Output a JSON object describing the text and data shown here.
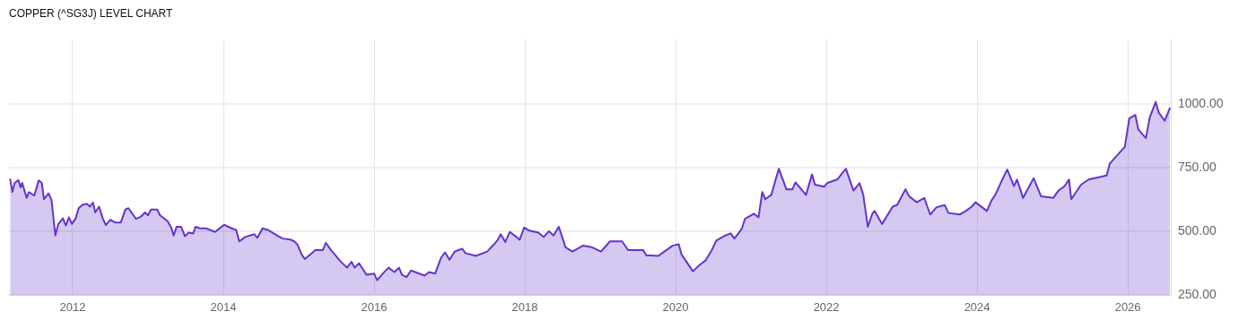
{
  "chart_data": {
    "type": "area",
    "title": "COPPER (^SG3J) LEVEL CHART",
    "x": [
      2011.17,
      2011.2,
      2011.23,
      2011.28,
      2011.31,
      2011.33,
      2011.39,
      2011.42,
      2011.49,
      2011.55,
      2011.59,
      2011.62,
      2011.68,
      2011.72,
      2011.77,
      2011.81,
      2011.87,
      2011.91,
      2011.95,
      2011.99,
      2012.04,
      2012.08,
      2012.13,
      2012.19,
      2012.23,
      2012.27,
      2012.3,
      2012.35,
      2012.4,
      2012.44,
      2012.5,
      2012.56,
      2012.64,
      2012.7,
      2012.74,
      2012.84,
      2012.9,
      2012.96,
      2013.0,
      2013.04,
      2013.12,
      2013.16,
      2013.26,
      2013.31,
      2013.34,
      2013.38,
      2013.44,
      2013.49,
      2013.54,
      2013.6,
      2013.63,
      2013.69,
      2013.77,
      2013.89,
      2014.01,
      2014.11,
      2014.17,
      2014.21,
      2014.29,
      2014.41,
      2014.45,
      2014.52,
      2014.59,
      2014.73,
      2014.79,
      2014.9,
      2014.94,
      2014.98,
      2015.04,
      2015.08,
      2015.18,
      2015.22,
      2015.32,
      2015.36,
      2015.44,
      2015.48,
      2015.54,
      2015.64,
      2015.7,
      2015.74,
      2015.8,
      2015.9,
      2016.0,
      2016.04,
      2016.1,
      2016.19,
      2016.27,
      2016.33,
      2016.37,
      2016.43,
      2016.49,
      2016.67,
      2016.73,
      2016.81,
      2016.89,
      2016.94,
      2017.0,
      2017.07,
      2017.11,
      2017.17,
      2017.21,
      2017.35,
      2017.5,
      2017.58,
      2017.64,
      2017.68,
      2017.74,
      2017.8,
      2017.88,
      2017.93,
      2017.99,
      2018.06,
      2018.18,
      2018.25,
      2018.32,
      2018.38,
      2018.45,
      2018.54,
      2018.63,
      2018.77,
      2018.89,
      2019.01,
      2019.13,
      2019.29,
      2019.37,
      2019.57,
      2019.61,
      2019.77,
      2019.85,
      2019.96,
      2020.04,
      2020.08,
      2020.23,
      2020.32,
      2020.4,
      2020.48,
      2020.54,
      2020.66,
      2020.73,
      2020.78,
      2020.84,
      2020.88,
      2020.92,
      2021.04,
      2021.1,
      2021.15,
      2021.19,
      2021.27,
      2021.33,
      2021.37,
      2021.47,
      2021.55,
      2021.59,
      2021.73,
      2021.81,
      2021.85,
      2021.97,
      2022.01,
      2022.15,
      2022.21,
      2022.26,
      2022.36,
      2022.44,
      2022.49,
      2022.55,
      2022.61,
      2022.64,
      2022.74,
      2022.88,
      2022.94,
      2023.05,
      2023.1,
      2023.2,
      2023.3,
      2023.34,
      2023.38,
      2023.46,
      2023.57,
      2023.62,
      2023.77,
      2023.85,
      2023.93,
      2023.98,
      2024.13,
      2024.19,
      2024.25,
      2024.33,
      2024.4,
      2024.49,
      2024.53,
      2024.61,
      2024.75,
      2024.85,
      2025.01,
      2025.08,
      2025.16,
      2025.22,
      2025.25,
      2025.38,
      2025.48,
      2025.72,
      2025.76,
      2025.82,
      2025.96,
      2026.02,
      2026.1,
      2026.14,
      2026.24,
      2026.29,
      2026.37,
      2026.41,
      2026.49,
      2026.56
    ],
    "series": [
      {
        "color": "#6633cc",
        "values": [
          706,
          655,
          690,
          700,
          672,
          690,
          631,
          654,
          640,
          700,
          690,
          626,
          649,
          622,
          484,
          529,
          551,
          523,
          555,
          529,
          551,
          591,
          604,
          608,
          597,
          613,
          574,
          597,
          551,
          525,
          546,
          535,
          535,
          586,
          591,
          549,
          557,
          574,
          563,
          586,
          586,
          563,
          540,
          514,
          484,
          518,
          518,
          481,
          495,
          492,
          518,
          512,
          512,
          498,
          526,
          512,
          506,
          461,
          478,
          489,
          475,
          512,
          506,
          481,
          472,
          467,
          461,
          450,
          409,
          392,
          416,
          427,
          427,
          455,
          422,
          409,
          387,
          358,
          381,
          358,
          375,
          330,
          335,
          309,
          330,
          358,
          341,
          358,
          330,
          321,
          347,
          327,
          341,
          335,
          398,
          418,
          389,
          421,
          426,
          432,
          415,
          404,
          421,
          446,
          467,
          489,
          458,
          498,
          480,
          467,
          515,
          503,
          495,
          478,
          501,
          484,
          518,
          438,
          421,
          444,
          438,
          421,
          461,
          461,
          427,
          427,
          407,
          404,
          421,
          444,
          450,
          409,
          344,
          369,
          387,
          427,
          464,
          484,
          492,
          472,
          495,
          512,
          549,
          569,
          555,
          654,
          626,
          643,
          706,
          745,
          665,
          665,
          692,
          643,
          723,
          683,
          675,
          689,
          704,
          728,
          745,
          660,
          689,
          643,
          518,
          569,
          580,
          529,
          597,
          604,
          665,
          637,
          614,
          631,
          597,
          566,
          594,
          603,
          572,
          566,
          580,
          597,
          614,
          580,
          620,
          648,
          700,
          742,
          677,
          703,
          631,
          708,
          637,
          631,
          660,
          677,
          703,
          626,
          683,
          703,
          719,
          765,
          785,
          831,
          942,
          956,
          899,
          865,
          945,
          1007,
          965,
          933,
          984
        ]
      }
    ],
    "xlim": [
      2011.155,
      2026.57
    ],
    "xticks": [
      2012,
      2014,
      2016,
      2018,
      2020,
      2022,
      2024,
      2026
    ],
    "ylim": [
      250,
      1250
    ],
    "yticks": [
      {
        "value": 250,
        "label": "250.00"
      },
      {
        "value": 500,
        "label": "500.00"
      },
      {
        "value": 750,
        "label": "750.00"
      },
      {
        "value": 1000,
        "label": "1000.00"
      }
    ],
    "grid": true
  }
}
